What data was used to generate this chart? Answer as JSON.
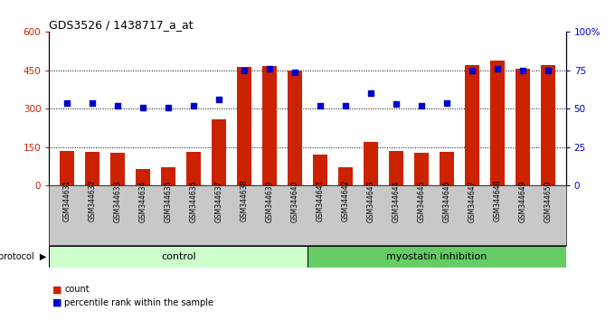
{
  "title": "GDS3526 / 1438717_a_at",
  "samples": [
    "GSM344631",
    "GSM344632",
    "GSM344633",
    "GSM344634",
    "GSM344635",
    "GSM344636",
    "GSM344637",
    "GSM344638",
    "GSM344639",
    "GSM344640",
    "GSM344641",
    "GSM344642",
    "GSM344643",
    "GSM344644",
    "GSM344645",
    "GSM344646",
    "GSM344647",
    "GSM344648",
    "GSM344649",
    "GSM344650"
  ],
  "counts": [
    135,
    132,
    130,
    65,
    72,
    133,
    258,
    465,
    467,
    450,
    120,
    72,
    170,
    135,
    130,
    133,
    470,
    490,
    455,
    470
  ],
  "percentiles_pct": [
    54,
    54,
    52,
    51,
    51,
    52,
    56,
    75,
    76,
    74,
    52,
    52,
    60,
    53,
    52,
    54,
    75,
    76,
    75,
    75
  ],
  "control_count": 10,
  "bar_color": "#cc2200",
  "dot_color": "#0000cc",
  "control_label": "control",
  "treatment_label": "myostatin inhibition",
  "control_bg": "#ccffcc",
  "treatment_bg": "#66cc66",
  "ylim_left": [
    0,
    600
  ],
  "ylim_right": [
    0,
    100
  ],
  "yticks_left": [
    0,
    150,
    300,
    450,
    600
  ],
  "ytick_labels_left": [
    "0",
    "150",
    "300",
    "450",
    "600"
  ],
  "yticks_right": [
    0,
    25,
    50,
    75,
    100
  ],
  "ytick_labels_right": [
    "0",
    "25",
    "50",
    "75",
    "100%"
  ],
  "hlines": [
    150,
    300,
    450
  ],
  "legend_count_label": "count",
  "legend_pct_label": "percentile rank within the sample",
  "protocol_label": "protocol",
  "bg_color": "#ffffff",
  "plot_bg": "#ffffff",
  "xtick_bg": "#c8c8c8"
}
